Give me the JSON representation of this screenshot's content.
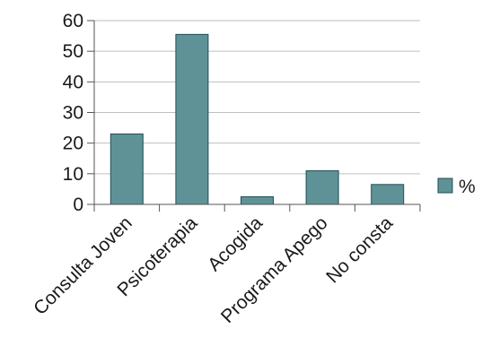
{
  "chart_data": {
    "type": "bar",
    "categories": [
      "Consulta Joven",
      "Psicoterapia",
      "Acogida",
      "Programa Apego",
      "No consta"
    ],
    "series": [
      {
        "name": "%",
        "values": [
          23,
          55.5,
          2.5,
          11,
          6.5
        ]
      }
    ],
    "ylim": [
      0,
      60
    ],
    "yticks": [
      0,
      10,
      20,
      30,
      40,
      50,
      60
    ],
    "grid": true,
    "legend": "right",
    "colors": {
      "bar": "#5f9296",
      "bar_edge": "#1f4f57",
      "axis": "#555555",
      "grid": "#bfbfbf"
    }
  }
}
